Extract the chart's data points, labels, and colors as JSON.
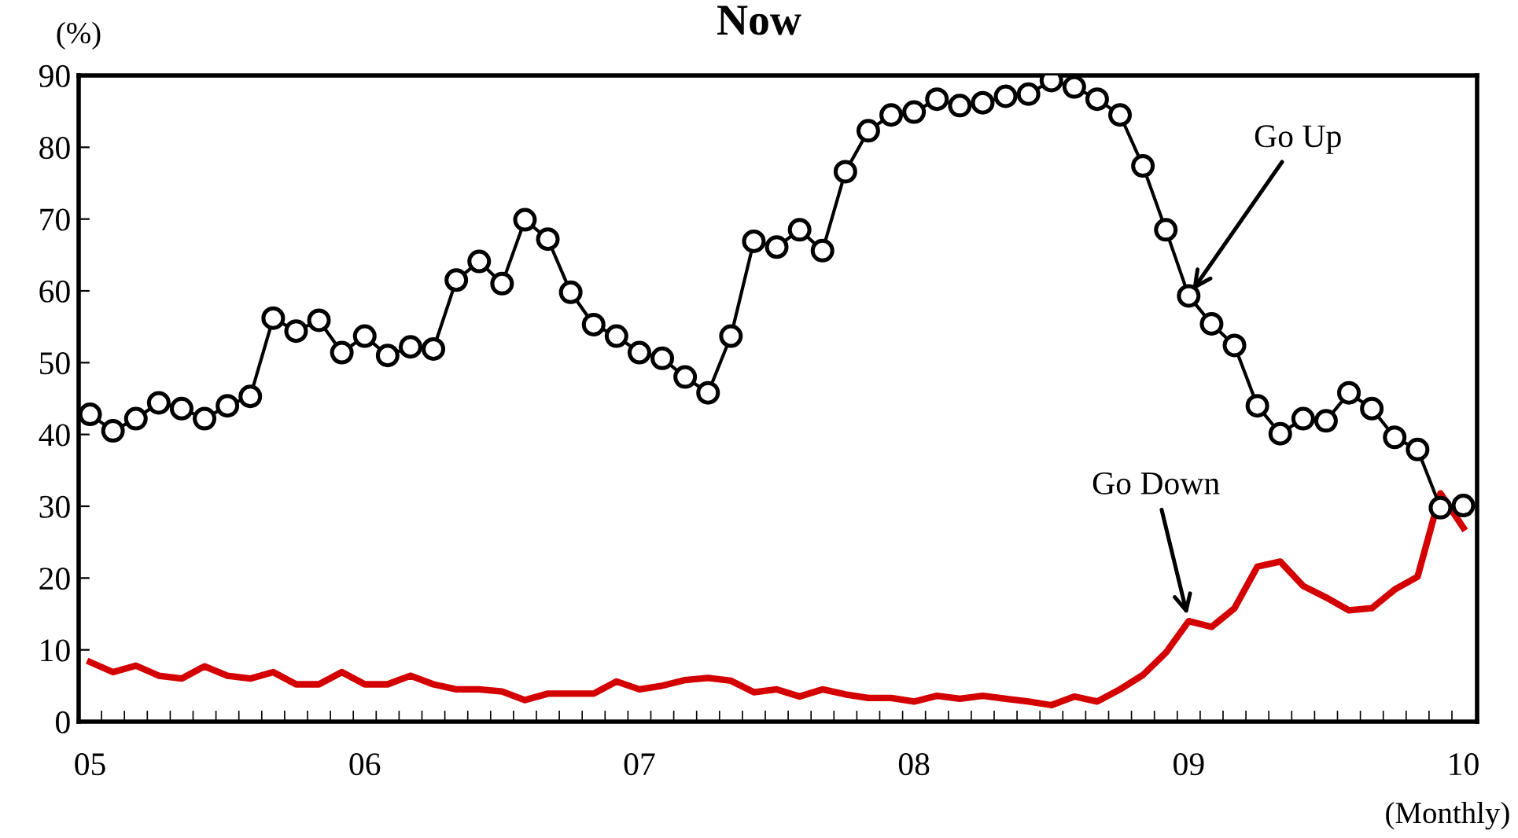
{
  "chart_data": {
    "type": "line",
    "title": "Now",
    "ylabel": "(%)",
    "xlabel": "(Monthly)",
    "categories": [
      "05",
      null,
      null,
      null,
      null,
      null,
      null,
      null,
      null,
      null,
      null,
      null,
      "06",
      null,
      null,
      null,
      null,
      null,
      null,
      null,
      null,
      null,
      null,
      null,
      "07",
      null,
      null,
      null,
      null,
      null,
      null,
      null,
      null,
      null,
      null,
      null,
      "08",
      null,
      null,
      null,
      null,
      null,
      null,
      null,
      null,
      null,
      null,
      null,
      "09",
      null,
      null,
      null,
      null,
      null,
      null,
      null,
      null,
      null,
      null,
      null,
      "10"
    ],
    "series": [
      {
        "color": "#000000",
        "marker": "circle",
        "values": [
          42.8,
          40.5,
          42.2,
          44.4,
          43.6,
          42.2,
          44.0,
          45.3,
          56.2,
          54.4,
          55.9,
          51.4,
          53.7,
          51.0,
          52.2,
          51.9,
          61.5,
          64.1,
          61.0,
          69.9,
          67.2,
          59.8,
          55.3,
          53.7,
          51.4,
          50.6,
          48.0,
          45.8,
          53.7,
          66.9,
          66.1,
          68.5,
          65.6,
          76.6,
          82.3,
          84.5,
          84.9,
          86.7,
          85.8,
          86.2,
          87.1,
          87.4,
          89.3,
          88.4,
          86.7,
          84.5,
          77.4,
          68.5,
          59.3,
          55.4,
          52.4,
          44.0,
          40.1,
          42.2,
          41.9,
          45.8,
          43.6,
          39.6,
          37.9,
          29.8,
          30.1
        ]
      },
      {
        "color": "#d40000",
        "marker": "none",
        "values": [
          8.3,
          6.9,
          7.8,
          6.4,
          6.0,
          7.7,
          6.4,
          6.0,
          6.9,
          5.2,
          5.2,
          6.9,
          5.2,
          5.2,
          6.4,
          5.2,
          4.5,
          4.5,
          4.2,
          3.0,
          3.9,
          3.9,
          3.9,
          5.6,
          4.5,
          5.0,
          5.8,
          6.1,
          5.7,
          4.1,
          4.5,
          3.5,
          4.5,
          3.8,
          3.3,
          3.3,
          2.8,
          3.6,
          3.2,
          3.6,
          3.2,
          2.8,
          2.3,
          3.5,
          2.8,
          4.5,
          6.5,
          9.6,
          14.0,
          13.2,
          15.8,
          21.6,
          22.3,
          18.9,
          17.3,
          15.5,
          15.8,
          18.4,
          20.2,
          31.8,
          27.0
        ]
      }
    ],
    "ylim": [
      0,
      90
    ],
    "yticks": [
      0,
      10,
      20,
      30,
      40,
      50,
      60,
      70,
      80,
      90
    ],
    "annotations": [
      {
        "text": "Go Up",
        "x": "09",
        "y": 59.3
      },
      {
        "text": "Go Down",
        "x": "09",
        "y": 14.0
      }
    ],
    "grid": false,
    "legend": false
  }
}
